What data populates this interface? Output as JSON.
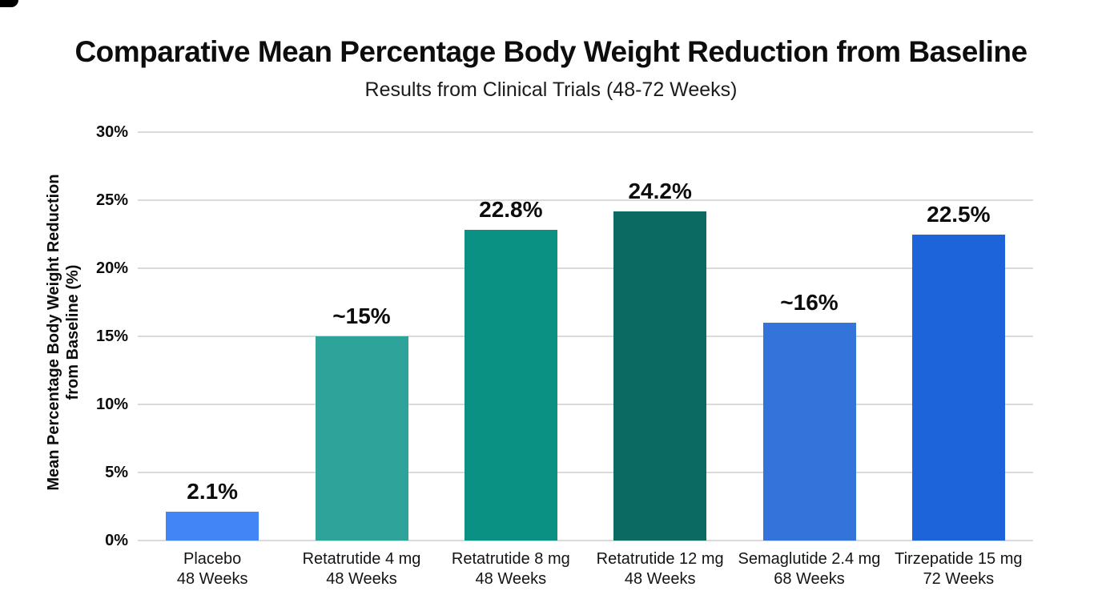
{
  "title": "Comparative Mean Percentage Body Weight Reduction from Baseline",
  "subtitle": "Results from Clinical Trials (48-72 Weeks)",
  "y_axis_title_line1": "Mean Percentage Body Weight Reduction",
  "y_axis_title_line2": "from Baseline (%)",
  "colors": {
    "background": "#ffffff",
    "gridline": "#dadada",
    "text": "#0d0d0d",
    "corner_artifact": "#000000"
  },
  "chart_data": {
    "type": "bar",
    "title": "Comparative Mean Percentage Body Weight Reduction from Baseline",
    "subtitle": "Results from Clinical Trials (48-72 Weeks)",
    "ylabel": "Mean Percentage Body Weight Reduction from Baseline (%)",
    "xlabel": "",
    "ylim": [
      0,
      30
    ],
    "grid": true,
    "yticks_desc": [
      "30%",
      "25%",
      "20%",
      "15%",
      "10%",
      "5%",
      "0%"
    ],
    "categories": [
      "Placebo 48 Weeks",
      "Retatrutide 4 mg 48 Weeks",
      "Retatrutide 8 mg 48 Weeks",
      "Retatrutide 12 mg 48 Weeks",
      "Semaglutide 2.4 mg 68 Weeks",
      "Tirzepatide 15 mg 72 Weeks"
    ],
    "values": [
      2.1,
      15,
      22.8,
      24.2,
      16,
      22.5
    ],
    "bars": [
      {
        "label_line1": "Placebo",
        "label_line2": "48 Weeks",
        "value": 2.1,
        "value_label": "2.1%",
        "color": "#4285f4"
      },
      {
        "label_line1": "Retatrutide 4 mg",
        "label_line2": "48 Weeks",
        "value": 15,
        "value_label": "~15%",
        "color": "#2da39a"
      },
      {
        "label_line1": "Retatrutide 8 mg",
        "label_line2": "48 Weeks",
        "value": 22.8,
        "value_label": "22.8%",
        "color": "#0b9184"
      },
      {
        "label_line1": "Retatrutide 12 mg",
        "label_line2": "48 Weeks",
        "value": 24.2,
        "value_label": "24.2%",
        "color": "#0b6a62"
      },
      {
        "label_line1": "Semaglutide 2.4 mg",
        "label_line2": "68 Weeks",
        "value": 16,
        "value_label": "~16%",
        "color": "#3274d9"
      },
      {
        "label_line1": "Tirzepatide 15 mg",
        "label_line2": "72 Weeks",
        "value": 22.5,
        "value_label": "22.5%",
        "color": "#1d63da"
      }
    ]
  }
}
